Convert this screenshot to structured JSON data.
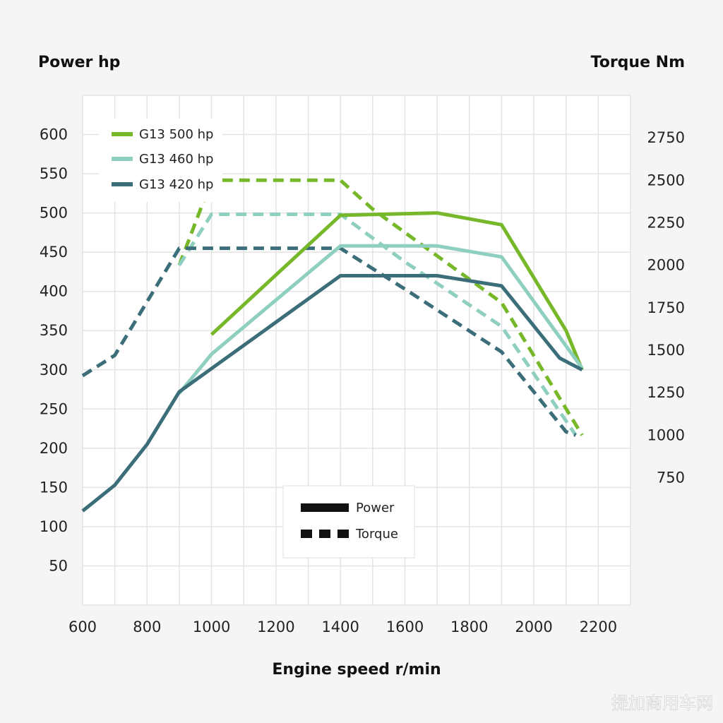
{
  "page": {
    "watermark": "提加商用车网"
  },
  "chart_data": {
    "type": "line",
    "xlabel": "Engine speed r/min",
    "ylabel_left": "Power hp",
    "ylabel_right": "Torque Nm",
    "xlim": [
      600,
      2300
    ],
    "ylim_left": [
      0,
      650
    ],
    "ylim_right": [
      0,
      3000
    ],
    "x_ticks": [
      600,
      800,
      1000,
      1200,
      1400,
      1600,
      1800,
      2000,
      2200
    ],
    "y_ticks_left": [
      50,
      100,
      150,
      200,
      250,
      300,
      350,
      400,
      450,
      500,
      550,
      600
    ],
    "y_ticks_right": [
      750,
      1000,
      1250,
      1500,
      1750,
      2000,
      2250,
      2500,
      2750
    ],
    "grid": true,
    "series_legend": {
      "placement": "top-left",
      "entries": [
        {
          "name": "G13 500 hp",
          "color": "#76b82a"
        },
        {
          "name": "G13 460 hp",
          "color": "#8ecfc0"
        },
        {
          "name": "G13 420 hp",
          "color": "#3c6e7a"
        }
      ]
    },
    "style_legend": {
      "placement": "bottom-center",
      "entries": [
        {
          "label": "Power",
          "style": "solid"
        },
        {
          "label": "Torque",
          "style": "dashed"
        }
      ]
    },
    "series": [
      {
        "name": "G13 500 hp",
        "measure": "Power",
        "axis": "left",
        "color": "#76b82a",
        "points": [
          [
            1000,
            345
          ],
          [
            1400,
            497
          ],
          [
            1700,
            500
          ],
          [
            1900,
            485
          ],
          [
            2100,
            350
          ],
          [
            2150,
            300
          ]
        ]
      },
      {
        "name": "G13 460 hp",
        "measure": "Power",
        "axis": "left",
        "color": "#8ecfc0",
        "points": [
          [
            900,
            270
          ],
          [
            1000,
            320
          ],
          [
            1400,
            458
          ],
          [
            1700,
            458
          ],
          [
            1900,
            444
          ],
          [
            2150,
            302
          ]
        ]
      },
      {
        "name": "G13 420 hp",
        "measure": "Power",
        "axis": "left",
        "color": "#3c6e7a",
        "points": [
          [
            600,
            120
          ],
          [
            700,
            153
          ],
          [
            800,
            205
          ],
          [
            900,
            272
          ],
          [
            1400,
            420
          ],
          [
            1700,
            420
          ],
          [
            1900,
            407
          ],
          [
            2080,
            315
          ],
          [
            2150,
            300
          ]
        ]
      },
      {
        "name": "G13 500 hp",
        "measure": "Torque",
        "axis": "right",
        "color": "#76b82a",
        "points": [
          [
            900,
            2000
          ],
          [
            1000,
            2500
          ],
          [
            1400,
            2500
          ],
          [
            1500,
            2330
          ],
          [
            1900,
            1780
          ],
          [
            2150,
            1000
          ]
        ]
      },
      {
        "name": "G13 460 hp",
        "measure": "Torque",
        "axis": "right",
        "color": "#8ecfc0",
        "points": [
          [
            900,
            2000
          ],
          [
            1000,
            2300
          ],
          [
            1400,
            2300
          ],
          [
            1600,
            2020
          ],
          [
            1900,
            1640
          ],
          [
            2130,
            1000
          ]
        ]
      },
      {
        "name": "G13 420 hp",
        "measure": "Torque",
        "axis": "right",
        "color": "#3c6e7a",
        "points": [
          [
            600,
            1350
          ],
          [
            700,
            1470
          ],
          [
            900,
            2100
          ],
          [
            1400,
            2100
          ],
          [
            1600,
            1860
          ],
          [
            1900,
            1490
          ],
          [
            2100,
            1020
          ],
          [
            2130,
            1000
          ]
        ]
      }
    ]
  }
}
